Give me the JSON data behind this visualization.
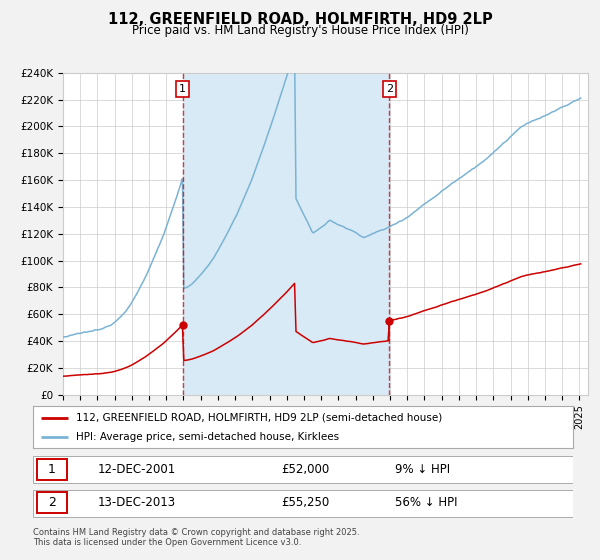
{
  "title": "112, GREENFIELD ROAD, HOLMFIRTH, HD9 2LP",
  "subtitle": "Price paid vs. HM Land Registry's House Price Index (HPI)",
  "legend_line1": "112, GREENFIELD ROAD, HOLMFIRTH, HD9 2LP (semi-detached house)",
  "legend_line2": "HPI: Average price, semi-detached house, Kirklees",
  "annotation1_date": "12-DEC-2001",
  "annotation1_price": "£52,000",
  "annotation1_hpi": "9% ↓ HPI",
  "annotation1_year": 2001.95,
  "annotation1_value": 52000,
  "annotation2_date": "13-DEC-2013",
  "annotation2_price": "£55,250",
  "annotation2_hpi": "56% ↓ HPI",
  "annotation2_year": 2013.95,
  "annotation2_value": 55250,
  "footer": "Contains HM Land Registry data © Crown copyright and database right 2025.\nThis data is licensed under the Open Government Licence v3.0.",
  "ylim": [
    0,
    240000
  ],
  "yticks": [
    0,
    20000,
    40000,
    60000,
    80000,
    100000,
    120000,
    140000,
    160000,
    180000,
    200000,
    220000,
    240000
  ],
  "hpi_color": "#7ab3d4",
  "price_color": "#cc0000",
  "shaded_color": "#d8eaf5",
  "vline_color": "#cc0000",
  "background_color": "#f2f2f2",
  "plot_bg_color": "#ffffff",
  "grid_color": "#cccccc"
}
